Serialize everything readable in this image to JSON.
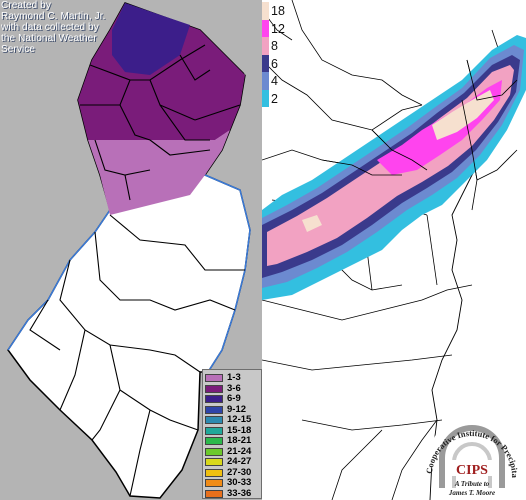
{
  "credit": {
    "line1": "Created by",
    "line2": "Raymond C. Martin, Jr.",
    "line3": "with data collected by",
    "line4": "the National Weather",
    "line5": "Service"
  },
  "nj_legend": [
    {
      "label": "1-3",
      "color": "#b870b8"
    },
    {
      "label": "3-6",
      "color": "#7a1c7a"
    },
    {
      "label": "6-9",
      "color": "#3c1e8a"
    },
    {
      "label": "9-12",
      "color": "#2e44a8"
    },
    {
      "label": "12-15",
      "color": "#2c8ab0"
    },
    {
      "label": "15-18",
      "color": "#20a89a"
    },
    {
      "label": "18-21",
      "color": "#2cb84c"
    },
    {
      "label": "21-24",
      "color": "#6cc82c"
    },
    {
      "label": "24-27",
      "color": "#d8d81c"
    },
    {
      "label": "27-30",
      "color": "#f0c010"
    },
    {
      "label": "30-33",
      "color": "#f08c18"
    },
    {
      "label": "33-36",
      "color": "#e8701c"
    }
  ],
  "us_legend": [
    {
      "label": "18",
      "color": "#f6e0cf"
    },
    {
      "label": "12",
      "color": "#ff44ee"
    },
    {
      "label": "8",
      "color": "#f2a2c2"
    },
    {
      "label": "6",
      "color": "#3a3a8c"
    },
    {
      "label": "4",
      "color": "#6c8ad0"
    },
    {
      "label": "2",
      "color": "#33bfe0"
    }
  ],
  "cips": {
    "abbr": "CIPS",
    "arc_text": "Cooperative Institute for Precipitation Systems",
    "tribute": "A Tribute to",
    "name": "James T. Moore"
  }
}
